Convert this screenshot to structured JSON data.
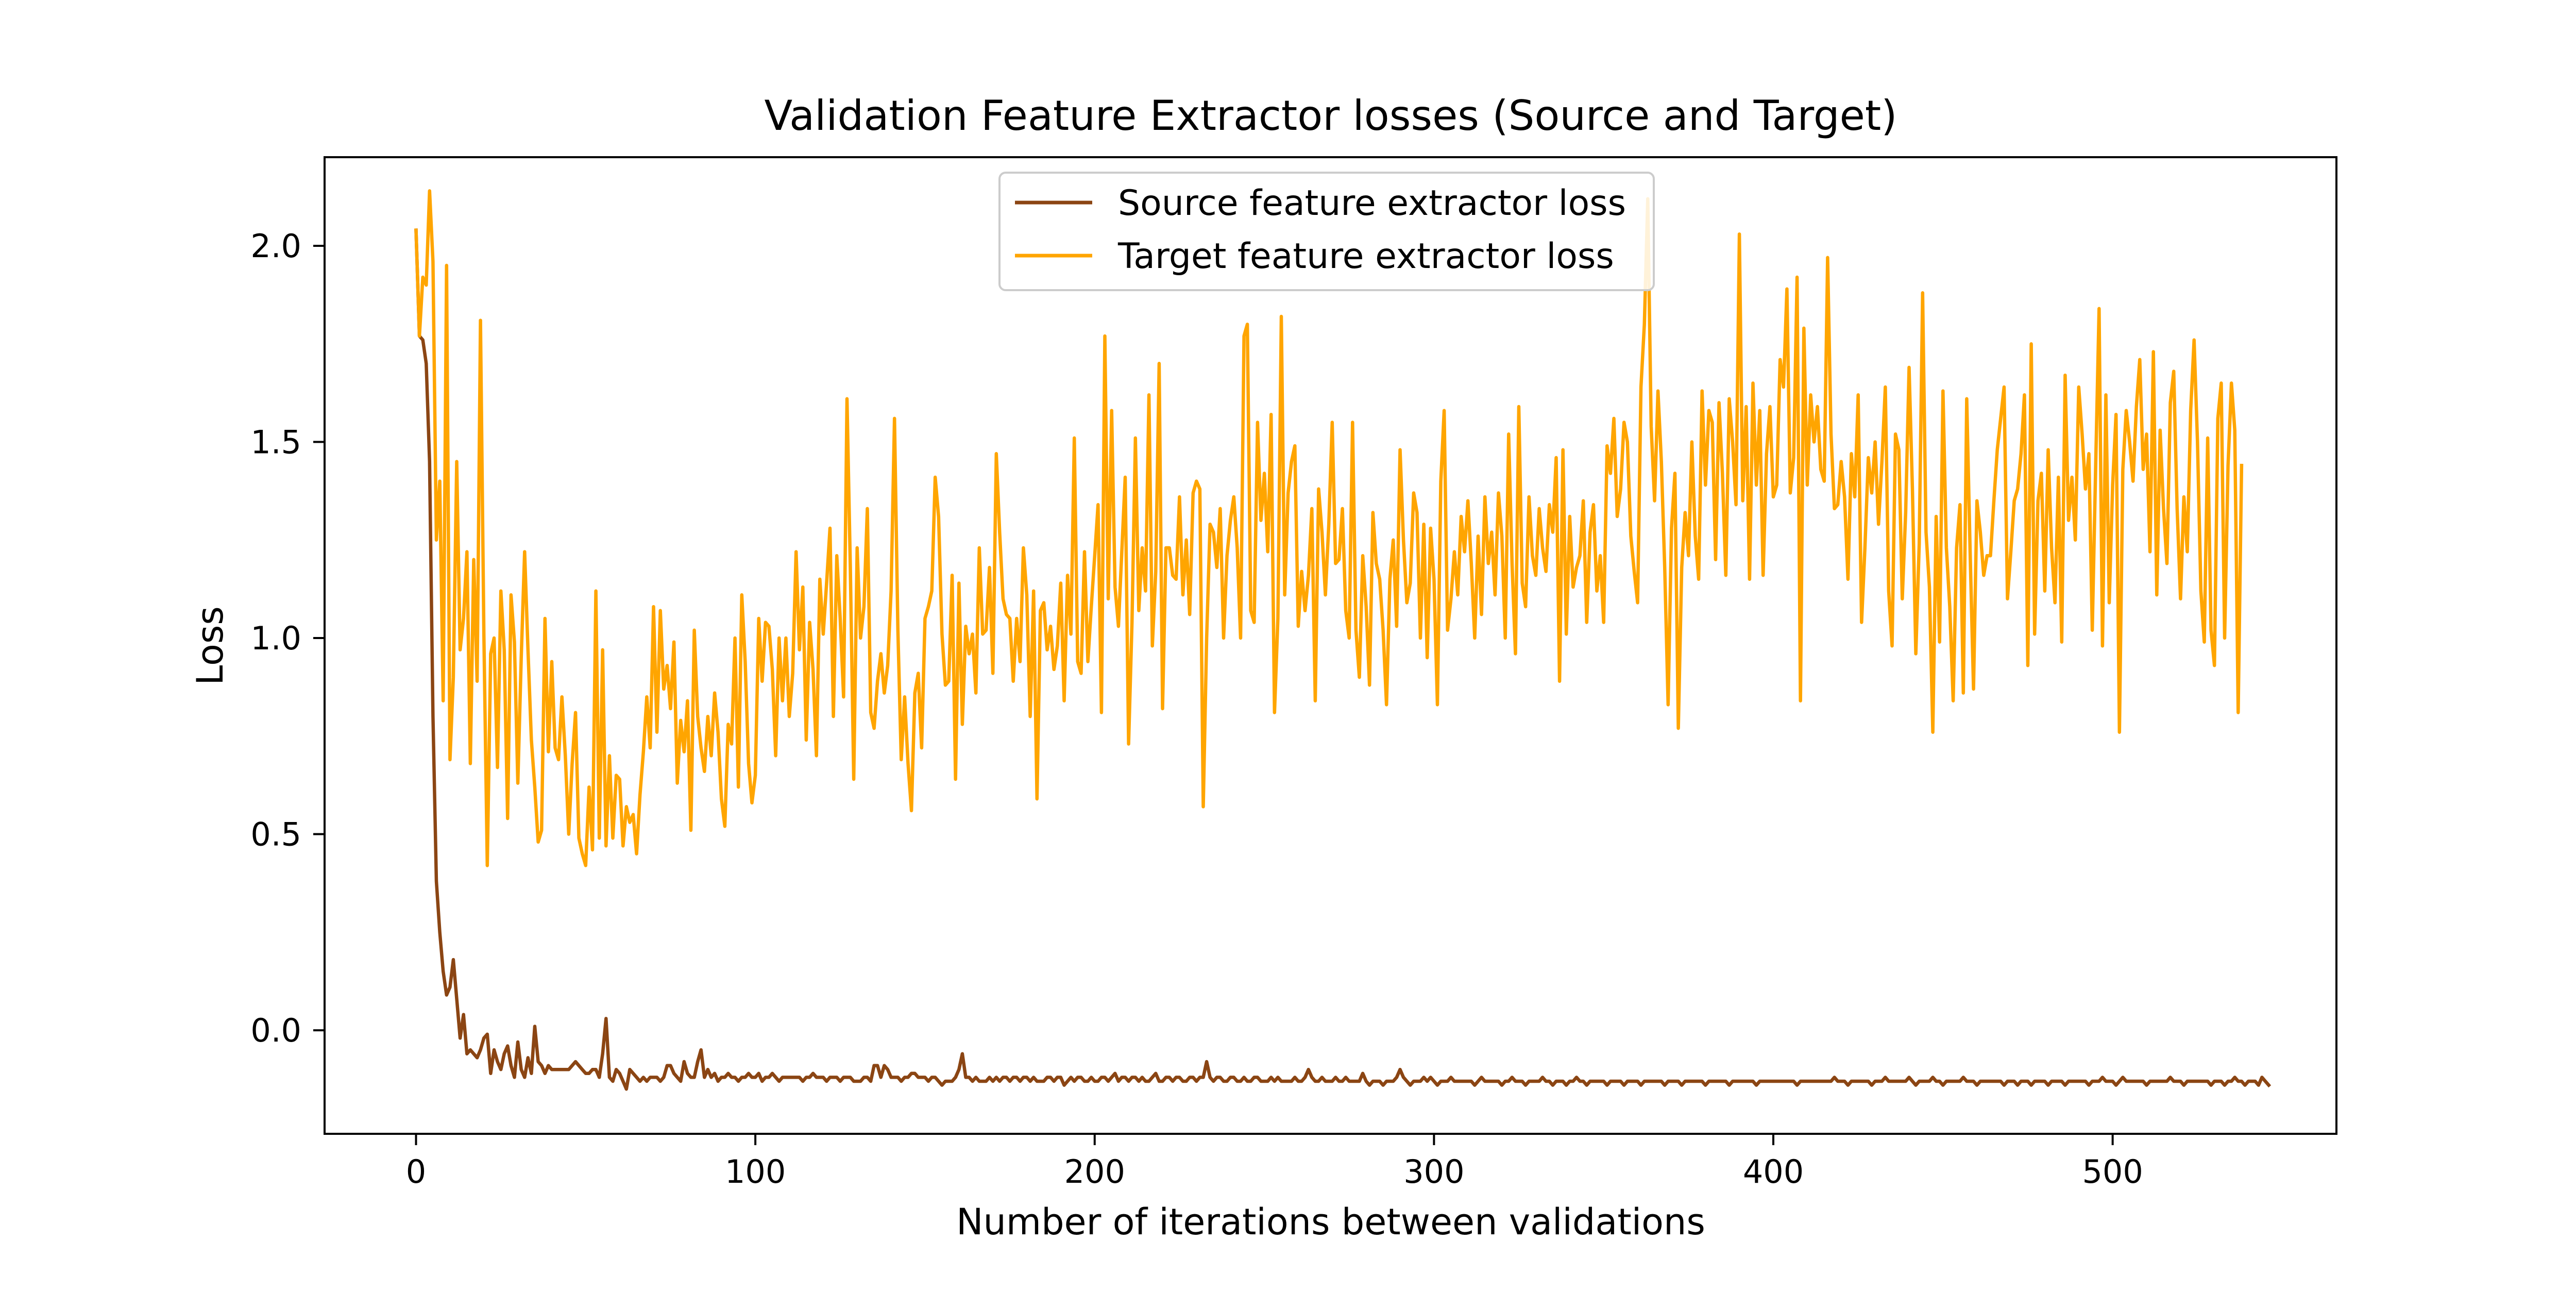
{
  "chart_data": {
    "type": "line",
    "title": "Validation Feature Extractor losses (Source and Target)",
    "xlabel": "Number of iterations between validations",
    "ylabel": "Loss",
    "xlim": [
      -26.95,
      565.95
    ],
    "ylim": [
      -0.264,
      2.226
    ],
    "xticks": [
      0,
      100,
      200,
      300,
      400,
      500
    ],
    "yticks": [
      0.0,
      0.5,
      1.0,
      1.5,
      2.0
    ],
    "xtick_labels": [
      "0",
      "100",
      "200",
      "300",
      "400",
      "500"
    ],
    "ytick_labels": [
      "0.0",
      "0.5",
      "1.0",
      "1.5",
      "2.0"
    ],
    "grid": false,
    "legend_position": "top-center",
    "series": [
      {
        "name": "Source feature extractor loss",
        "color": "#8B4513",
        "x_start": 0,
        "x_step": 1,
        "values": [
          2.04,
          1.77,
          1.76,
          1.7,
          1.45,
          0.8,
          0.38,
          0.25,
          0.15,
          0.09,
          0.11,
          0.18,
          0.08,
          -0.02,
          0.04,
          -0.06,
          -0.05,
          -0.06,
          -0.07,
          -0.05,
          -0.02,
          -0.01,
          -0.11,
          -0.05,
          -0.08,
          -0.1,
          -0.06,
          -0.04,
          -0.09,
          -0.12,
          -0.03,
          -0.1,
          -0.12,
          -0.07,
          -0.11,
          0.01,
          -0.08,
          -0.09,
          -0.11,
          -0.09,
          -0.1,
          -0.1,
          -0.1,
          -0.1,
          -0.1,
          -0.1,
          -0.09,
          -0.08,
          -0.09,
          -0.1,
          -0.11,
          -0.11,
          -0.1,
          -0.1,
          -0.12,
          -0.06,
          0.03,
          -0.12,
          -0.13,
          -0.1,
          -0.11,
          -0.13,
          -0.15,
          -0.1,
          -0.11,
          -0.12,
          -0.13,
          -0.12,
          -0.13,
          -0.12,
          -0.12,
          -0.12,
          -0.13,
          -0.12,
          -0.09,
          -0.09,
          -0.11,
          -0.12,
          -0.13,
          -0.08,
          -0.11,
          -0.12,
          -0.12,
          -0.08,
          -0.05,
          -0.12,
          -0.1,
          -0.12,
          -0.11,
          -0.13,
          -0.12,
          -0.12,
          -0.11,
          -0.12,
          -0.12,
          -0.13,
          -0.12,
          -0.12,
          -0.11,
          -0.12,
          -0.12,
          -0.11,
          -0.13,
          -0.12,
          -0.12,
          -0.11,
          -0.12,
          -0.13,
          -0.12,
          -0.12,
          -0.12,
          -0.12,
          -0.12,
          -0.12,
          -0.13,
          -0.12,
          -0.12,
          -0.11,
          -0.12,
          -0.12,
          -0.12,
          -0.13,
          -0.12,
          -0.12,
          -0.12,
          -0.13,
          -0.12,
          -0.12,
          -0.12,
          -0.13,
          -0.13,
          -0.13,
          -0.12,
          -0.12,
          -0.13,
          -0.09,
          -0.09,
          -0.12,
          -0.09,
          -0.1,
          -0.12,
          -0.12,
          -0.12,
          -0.13,
          -0.12,
          -0.12,
          -0.11,
          -0.11,
          -0.12,
          -0.12,
          -0.12,
          -0.13,
          -0.12,
          -0.12,
          -0.13,
          -0.14,
          -0.13,
          -0.13,
          -0.13,
          -0.12,
          -0.1,
          -0.06,
          -0.12,
          -0.12,
          -0.13,
          -0.12,
          -0.13,
          -0.13,
          -0.13,
          -0.12,
          -0.13,
          -0.12,
          -0.13,
          -0.12,
          -0.12,
          -0.13,
          -0.12,
          -0.12,
          -0.13,
          -0.12,
          -0.12,
          -0.13,
          -0.12,
          -0.13,
          -0.13,
          -0.13,
          -0.12,
          -0.12,
          -0.13,
          -0.12,
          -0.12,
          -0.14,
          -0.13,
          -0.12,
          -0.13,
          -0.12,
          -0.12,
          -0.13,
          -0.13,
          -0.12,
          -0.13,
          -0.13,
          -0.12,
          -0.12,
          -0.13,
          -0.12,
          -0.11,
          -0.13,
          -0.12,
          -0.12,
          -0.13,
          -0.12,
          -0.12,
          -0.13,
          -0.12,
          -0.13,
          -0.13,
          -0.12,
          -0.11,
          -0.13,
          -0.13,
          -0.12,
          -0.12,
          -0.13,
          -0.12,
          -0.12,
          -0.13,
          -0.13,
          -0.12,
          -0.12,
          -0.13,
          -0.12,
          -0.12,
          -0.08,
          -0.12,
          -0.13,
          -0.12,
          -0.12,
          -0.13,
          -0.13,
          -0.12,
          -0.12,
          -0.13,
          -0.13,
          -0.12,
          -0.13,
          -0.13,
          -0.12,
          -0.12,
          -0.13,
          -0.13,
          -0.13,
          -0.12,
          -0.13,
          -0.12,
          -0.13,
          -0.13,
          -0.13,
          -0.13,
          -0.12,
          -0.13,
          -0.13,
          -0.12,
          -0.1,
          -0.12,
          -0.13,
          -0.13,
          -0.12,
          -0.13,
          -0.13,
          -0.13,
          -0.12,
          -0.13,
          -0.13,
          -0.12,
          -0.13,
          -0.13,
          -0.13,
          -0.13,
          -0.11,
          -0.13,
          -0.14,
          -0.13,
          -0.13,
          -0.13,
          -0.14,
          -0.13,
          -0.13,
          -0.13,
          -0.12,
          -0.1,
          -0.12,
          -0.13,
          -0.14,
          -0.13,
          -0.13,
          -0.13,
          -0.12,
          -0.13,
          -0.12,
          -0.13,
          -0.14,
          -0.13,
          -0.13,
          -0.13,
          -0.12,
          -0.13,
          -0.13,
          -0.13,
          -0.13,
          -0.13,
          -0.13,
          -0.14,
          -0.13,
          -0.12,
          -0.13,
          -0.13,
          -0.13,
          -0.13,
          -0.13,
          -0.14,
          -0.13,
          -0.13,
          -0.12,
          -0.13,
          -0.13,
          -0.13,
          -0.14,
          -0.13,
          -0.13,
          -0.13,
          -0.13,
          -0.12,
          -0.13,
          -0.13,
          -0.14,
          -0.13,
          -0.13,
          -0.13,
          -0.14,
          -0.13,
          -0.13,
          -0.12,
          -0.13,
          -0.13,
          -0.14,
          -0.13,
          -0.13,
          -0.13,
          -0.13,
          -0.13,
          -0.14,
          -0.13,
          -0.13,
          -0.13,
          -0.13,
          -0.14,
          -0.13,
          -0.13,
          -0.13,
          -0.13,
          -0.14,
          -0.13,
          -0.13,
          -0.13,
          -0.13,
          -0.13,
          -0.13,
          -0.14,
          -0.13,
          -0.13,
          -0.13,
          -0.13,
          -0.14,
          -0.13,
          -0.13,
          -0.13,
          -0.13,
          -0.13,
          -0.13,
          -0.14,
          -0.13,
          -0.13,
          -0.13,
          -0.13,
          -0.13,
          -0.13,
          -0.14,
          -0.13,
          -0.13,
          -0.13,
          -0.13,
          -0.13,
          -0.13,
          -0.13,
          -0.14,
          -0.13,
          -0.13,
          -0.13,
          -0.13,
          -0.13,
          -0.13,
          -0.13,
          -0.13,
          -0.13,
          -0.13,
          -0.13,
          -0.14,
          -0.13,
          -0.13,
          -0.13,
          -0.13,
          -0.13,
          -0.13,
          -0.13,
          -0.13,
          -0.13,
          -0.13,
          -0.12,
          -0.13,
          -0.13,
          -0.13,
          -0.14,
          -0.13,
          -0.13,
          -0.13,
          -0.13,
          -0.13,
          -0.13,
          -0.14,
          -0.13,
          -0.13,
          -0.13,
          -0.12,
          -0.13,
          -0.13,
          -0.13,
          -0.13,
          -0.13,
          -0.13,
          -0.12,
          -0.13,
          -0.14,
          -0.13,
          -0.13,
          -0.13,
          -0.13,
          -0.12,
          -0.13,
          -0.13,
          -0.14,
          -0.13,
          -0.13,
          -0.13,
          -0.13,
          -0.13,
          -0.12,
          -0.13,
          -0.13,
          -0.13,
          -0.14,
          -0.13,
          -0.13,
          -0.13,
          -0.13,
          -0.13,
          -0.13,
          -0.13,
          -0.14,
          -0.13,
          -0.13,
          -0.13,
          -0.14,
          -0.13,
          -0.13,
          -0.13,
          -0.14,
          -0.13,
          -0.13,
          -0.13,
          -0.13,
          -0.14,
          -0.13,
          -0.13,
          -0.13,
          -0.13,
          -0.14,
          -0.13,
          -0.13,
          -0.13,
          -0.13,
          -0.13,
          -0.13,
          -0.14,
          -0.13,
          -0.13,
          -0.13,
          -0.12,
          -0.13,
          -0.13,
          -0.13,
          -0.14,
          -0.13,
          -0.12,
          -0.13,
          -0.13,
          -0.13,
          -0.13,
          -0.13,
          -0.13,
          -0.14,
          -0.13,
          -0.13,
          -0.13,
          -0.13,
          -0.13,
          -0.13,
          -0.12,
          -0.13,
          -0.13,
          -0.13,
          -0.14,
          -0.13,
          -0.13,
          -0.13,
          -0.13,
          -0.13,
          -0.13,
          -0.13,
          -0.14,
          -0.13,
          -0.13,
          -0.13,
          -0.14,
          -0.13,
          -0.13,
          -0.12,
          -0.13,
          -0.13,
          -0.14,
          -0.13,
          -0.13,
          -0.13,
          -0.14,
          -0.12,
          -0.13,
          -0.14
        ]
      },
      {
        "name": "Target feature extractor loss",
        "color": "#FFA500",
        "x_start": 0,
        "x_step": 1,
        "values": [
          2.04,
          1.77,
          1.92,
          1.9,
          2.14,
          1.96,
          1.25,
          1.4,
          0.84,
          1.95,
          0.69,
          0.9,
          1.45,
          0.97,
          1.05,
          1.22,
          0.68,
          1.2,
          0.89,
          1.81,
          1.01,
          0.42,
          0.96,
          1.0,
          0.67,
          1.12,
          0.97,
          0.54,
          1.11,
          0.99,
          0.63,
          0.95,
          1.22,
          0.97,
          0.74,
          0.62,
          0.48,
          0.51,
          1.05,
          0.71,
          0.94,
          0.72,
          0.69,
          0.85,
          0.7,
          0.5,
          0.68,
          0.81,
          0.49,
          0.45,
          0.42,
          0.62,
          0.46,
          1.12,
          0.49,
          0.97,
          0.47,
          0.7,
          0.49,
          0.65,
          0.64,
          0.47,
          0.57,
          0.53,
          0.55,
          0.45,
          0.6,
          0.71,
          0.85,
          0.72,
          1.08,
          0.76,
          1.07,
          0.87,
          0.93,
          0.82,
          0.99,
          0.63,
          0.79,
          0.71,
          0.84,
          0.51,
          1.02,
          0.8,
          0.72,
          0.66,
          0.8,
          0.7,
          0.86,
          0.76,
          0.59,
          0.52,
          0.78,
          0.73,
          1.0,
          0.62,
          1.11,
          0.94,
          0.68,
          0.58,
          0.65,
          1.05,
          0.89,
          1.04,
          1.03,
          0.92,
          0.7,
          1.0,
          0.84,
          1.0,
          0.8,
          0.91,
          1.22,
          0.97,
          1.13,
          0.74,
          1.04,
          0.92,
          0.7,
          1.15,
          1.01,
          1.14,
          1.28,
          0.8,
          1.21,
          1.05,
          0.85,
          1.61,
          1.18,
          0.64,
          1.23,
          1.0,
          1.08,
          1.33,
          0.81,
          0.77,
          0.89,
          0.96,
          0.86,
          0.93,
          1.12,
          1.56,
          1.02,
          0.69,
          0.85,
          0.68,
          0.56,
          0.86,
          0.91,
          0.72,
          1.05,
          1.08,
          1.12,
          1.41,
          1.31,
          1.01,
          0.88,
          0.89,
          1.16,
          0.64,
          1.14,
          0.78,
          1.03,
          0.96,
          1.01,
          0.86,
          1.23,
          1.01,
          1.02,
          1.18,
          0.91,
          1.47,
          1.27,
          1.1,
          1.06,
          1.05,
          0.89,
          1.05,
          0.94,
          1.23,
          1.11,
          0.8,
          1.12,
          0.59,
          1.07,
          1.09,
          0.97,
          1.03,
          0.92,
          0.98,
          1.14,
          0.84,
          1.16,
          1.01,
          1.51,
          0.94,
          0.91,
          1.22,
          0.94,
          1.08,
          1.21,
          1.34,
          0.81,
          1.77,
          1.1,
          1.58,
          1.13,
          1.03,
          1.22,
          1.41,
          0.73,
          1.04,
          1.51,
          1.07,
          1.23,
          1.12,
          1.62,
          0.98,
          1.17,
          1.7,
          0.82,
          1.23,
          1.23,
          1.16,
          1.15,
          1.36,
          1.11,
          1.25,
          1.06,
          1.37,
          1.4,
          1.38,
          0.57,
          1.0,
          1.29,
          1.27,
          1.18,
          1.33,
          1.0,
          1.21,
          1.3,
          1.36,
          1.23,
          1.0,
          1.77,
          1.8,
          1.07,
          1.04,
          1.55,
          1.3,
          1.42,
          1.22,
          1.57,
          0.81,
          1.05,
          1.82,
          1.11,
          1.37,
          1.45,
          1.49,
          1.03,
          1.17,
          1.07,
          1.16,
          1.33,
          0.84,
          1.38,
          1.27,
          1.11,
          1.29,
          1.55,
          1.19,
          1.2,
          1.33,
          1.07,
          1.0,
          1.55,
          1.02,
          0.9,
          1.21,
          1.08,
          0.88,
          1.32,
          1.19,
          1.15,
          1.02,
          0.83,
          1.15,
          1.25,
          1.03,
          1.48,
          1.25,
          1.09,
          1.14,
          1.37,
          1.32,
          1.0,
          1.29,
          0.95,
          1.28,
          1.15,
          0.83,
          1.4,
          1.58,
          1.02,
          1.1,
          1.22,
          1.11,
          1.31,
          1.22,
          1.35,
          1.19,
          1.0,
          1.26,
          1.06,
          1.36,
          1.19,
          1.27,
          1.11,
          1.37,
          1.26,
          1.0,
          1.52,
          1.19,
          0.96,
          1.59,
          1.14,
          1.08,
          1.36,
          1.21,
          1.16,
          1.33,
          1.23,
          1.17,
          1.34,
          1.27,
          1.46,
          0.89,
          1.48,
          1.01,
          1.31,
          1.13,
          1.18,
          1.21,
          1.35,
          1.04,
          1.27,
          1.34,
          1.12,
          1.21,
          1.04,
          1.49,
          1.42,
          1.56,
          1.31,
          1.38,
          1.55,
          1.5,
          1.26,
          1.17,
          1.09,
          1.64,
          1.8,
          2.12,
          1.54,
          1.35,
          1.63,
          1.45,
          1.18,
          0.83,
          1.28,
          1.42,
          0.77,
          1.18,
          1.32,
          1.21,
          1.5,
          1.26,
          1.15,
          1.63,
          1.39,
          1.58,
          1.55,
          1.2,
          1.6,
          1.42,
          1.16,
          1.61,
          1.5,
          1.34,
          2.03,
          1.35,
          1.59,
          1.15,
          1.65,
          1.39,
          1.58,
          1.16,
          1.47,
          1.59,
          1.36,
          1.39,
          1.71,
          1.64,
          1.89,
          1.37,
          1.46,
          1.92,
          0.84,
          1.79,
          1.39,
          1.62,
          1.5,
          1.59,
          1.43,
          1.4,
          1.97,
          1.52,
          1.33,
          1.34,
          1.45,
          1.36,
          1.15,
          1.47,
          1.36,
          1.62,
          1.04,
          1.23,
          1.46,
          1.37,
          1.5,
          1.29,
          1.45,
          1.64,
          1.12,
          0.98,
          1.52,
          1.48,
          1.1,
          1.32,
          1.69,
          1.38,
          0.96,
          1.24,
          1.88,
          1.27,
          1.13,
          0.76,
          1.31,
          0.99,
          1.63,
          1.23,
          1.08,
          0.84,
          1.23,
          1.34,
          0.86,
          1.61,
          1.22,
          0.87,
          1.35,
          1.27,
          1.16,
          1.21,
          1.21,
          1.35,
          1.48,
          1.56,
          1.64,
          1.1,
          1.22,
          1.35,
          1.38,
          1.47,
          1.62,
          0.93,
          1.75,
          1.01,
          1.35,
          1.42,
          1.12,
          1.48,
          1.23,
          1.09,
          1.41,
          0.99,
          1.67,
          1.3,
          1.41,
          1.25,
          1.64,
          1.52,
          1.38,
          1.47,
          1.02,
          1.44,
          1.84,
          0.98,
          1.62,
          1.09,
          1.39,
          1.57,
          0.76,
          1.43,
          1.58,
          1.5,
          1.4,
          1.59,
          1.71,
          1.43,
          1.52,
          1.22,
          1.73,
          1.11,
          1.53,
          1.33,
          1.19,
          1.6,
          1.68,
          1.33,
          1.1,
          1.36,
          1.22,
          1.58,
          1.76,
          1.5,
          1.12,
          0.99,
          1.51,
          1.02,
          0.93,
          1.56,
          1.65,
          1.0,
          1.44,
          1.65,
          1.53,
          0.81,
          1.44
        ]
      }
    ]
  }
}
